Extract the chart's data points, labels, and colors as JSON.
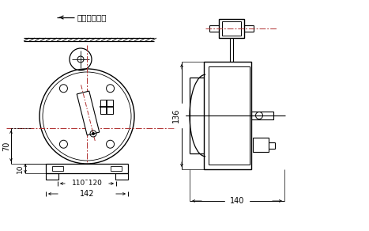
{
  "bg_color": "#ffffff",
  "line_color": "#000000",
  "dash_color": "#b03030",
  "label_arrow": "胶带运行方向",
  "dim_142": "142",
  "dim_110_120": "110¯120",
  "dim_70": "70",
  "dim_10": "10",
  "dim_136": "136",
  "dim_140": "140",
  "font_size": 7.0
}
